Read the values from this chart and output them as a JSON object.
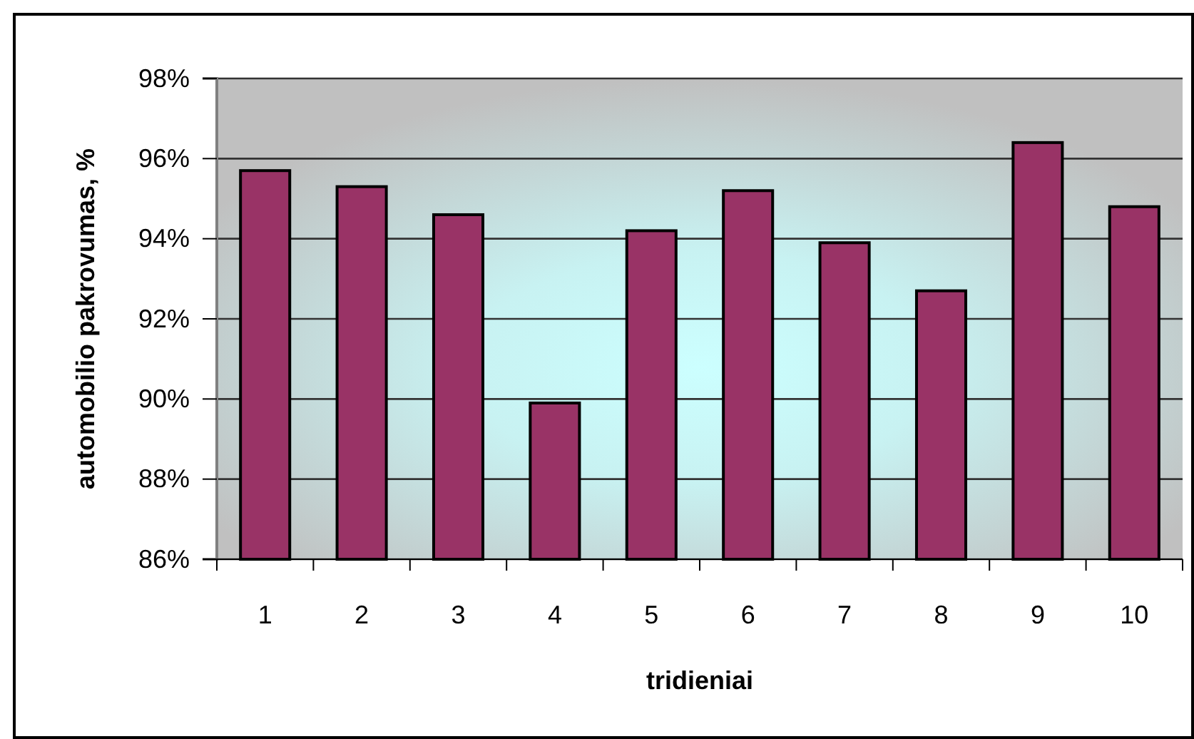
{
  "chart_data": {
    "type": "bar",
    "xlabel": "tridieniai",
    "ylabel": "automobilio pakrovumas, %",
    "categories": [
      "1",
      "2",
      "3",
      "4",
      "5",
      "6",
      "7",
      "8",
      "9",
      "10"
    ],
    "values": [
      95.7,
      95.3,
      94.6,
      89.9,
      94.2,
      95.2,
      93.9,
      92.7,
      96.4,
      94.8
    ],
    "color": "#993366",
    "ylim": [
      86,
      98
    ],
    "yticks": [
      {
        "value": 86,
        "label": "86%"
      },
      {
        "value": 88,
        "label": "88%"
      },
      {
        "value": 90,
        "label": "90%"
      },
      {
        "value": 92,
        "label": "92%"
      },
      {
        "value": 94,
        "label": "94%"
      },
      {
        "value": 96,
        "label": "96%"
      },
      {
        "value": 98,
        "label": "98%"
      }
    ],
    "grid": "y"
  }
}
